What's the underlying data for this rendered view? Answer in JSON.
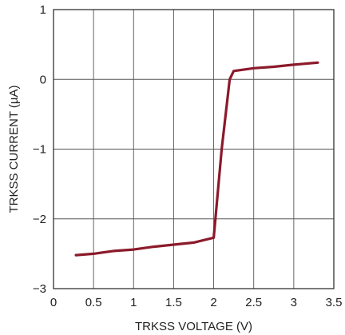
{
  "chart_data": {
    "type": "line",
    "xlabel": "TRKSS VOLTAGE (V)",
    "ylabel": "TRKSS CURRENT (µA)",
    "xlim": [
      0,
      3.5
    ],
    "ylim": [
      -3,
      1
    ],
    "x_ticks": [
      0,
      0.5,
      1,
      1.5,
      2,
      2.5,
      3,
      3.5
    ],
    "x_tick_labels": [
      "0",
      "0.5",
      "1",
      "1.5",
      "2",
      "2.5",
      "3",
      "3.5"
    ],
    "y_ticks": [
      -3,
      -2,
      -1,
      0,
      1
    ],
    "y_tick_labels": [
      "−3",
      "−2",
      "−1",
      "0",
      "1"
    ],
    "grid": true,
    "series": [
      {
        "color": "#8b1a2b",
        "points": [
          [
            0.28,
            -2.52
          ],
          [
            0.5,
            -2.5
          ],
          [
            0.75,
            -2.46
          ],
          [
            1.0,
            -2.44
          ],
          [
            1.25,
            -2.4
          ],
          [
            1.5,
            -2.37
          ],
          [
            1.75,
            -2.34
          ],
          [
            2.0,
            -2.27
          ],
          [
            2.1,
            -1.0
          ],
          [
            2.2,
            0.0
          ],
          [
            2.25,
            0.12
          ],
          [
            2.5,
            0.16
          ],
          [
            2.75,
            0.18
          ],
          [
            3.0,
            0.21
          ],
          [
            3.3,
            0.24
          ]
        ]
      }
    ]
  }
}
